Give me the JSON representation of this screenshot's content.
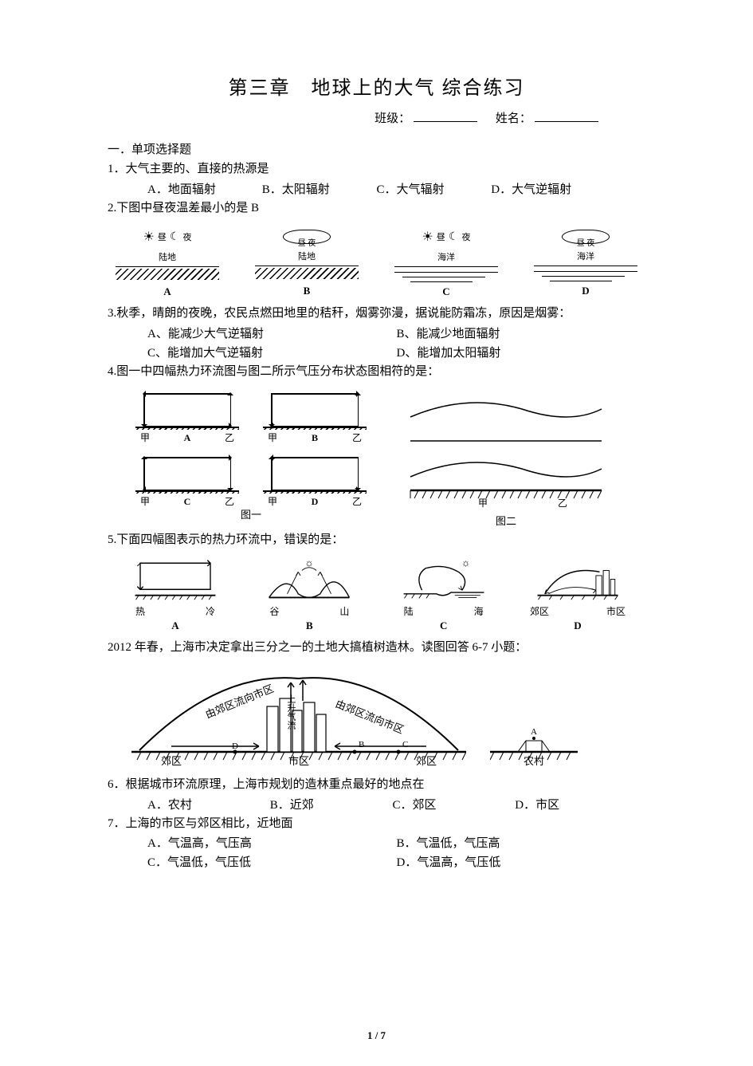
{
  "title": "第三章　地球上的大气 综合练习",
  "fill": {
    "class_label": "班级：",
    "name_label": "姓名："
  },
  "section1": "一．单项选择题",
  "q1": {
    "num": "1．",
    "text": "大气主要的、直接的热源是",
    "A": "A．地面辐射",
    "B": "B．太阳辐射",
    "C": "C．大气辐射",
    "D": "D．大气逆辐射"
  },
  "q2": {
    "num": "2.",
    "text": "下图中昼夜温差最小的是 B",
    "diagrams": [
      {
        "sky": "sun-moon",
        "day": "昼",
        "night": "夜",
        "surface": "陆地",
        "surface_type": "land",
        "letter": "A"
      },
      {
        "sky": "cloud",
        "day": "昼",
        "night": "夜",
        "surface": "陆地",
        "surface_type": "land",
        "letter": "B"
      },
      {
        "sky": "sun-moon",
        "day": "昼",
        "night": "夜",
        "surface": "海洋",
        "surface_type": "sea",
        "letter": "C"
      },
      {
        "sky": "cloud",
        "day": "昼",
        "night": "夜",
        "surface": "海洋",
        "surface_type": "sea",
        "letter": "D"
      }
    ]
  },
  "q3": {
    "num": "3.",
    "text": "秋季，晴朗的夜晚，农民点燃田地里的秸秆，烟雾弥漫，据说能防霜冻，原因是烟雾：",
    "A": "A、能减少大气逆辐射",
    "B": "B、能减少地面辐射",
    "C": "C、能增加大气逆辐射",
    "D": "D、能增加太阳辐射"
  },
  "q4": {
    "num": "4.",
    "text": "图一中四幅热力环流图与图二所示气压分布状态图相符的是：",
    "left_labels": {
      "a": "甲",
      "b": "乙",
      "A": "A",
      "B": "B",
      "C": "C",
      "D": "D",
      "fig1": "图一"
    },
    "right_labels": {
      "a": "甲",
      "b": "乙",
      "fig2": "图二"
    },
    "cells": [
      {
        "letter": "A",
        "top_dir": "left",
        "bot_dir": "right",
        "left_dir": "down",
        "right_dir": "up"
      },
      {
        "letter": "B",
        "top_dir": "right",
        "bot_dir": "left",
        "left_dir": "down",
        "right_dir": "up"
      },
      {
        "letter": "C",
        "top_dir": "right",
        "bot_dir": "left",
        "left_dir": "up",
        "right_dir": "down"
      },
      {
        "letter": "D",
        "top_dir": "left",
        "bot_dir": "right",
        "left_dir": "up",
        "right_dir": "down"
      }
    ]
  },
  "q5": {
    "num": "5.",
    "text": "下面四幅图表示的热力环流中，错误的是：",
    "labels": {
      "hot": "热",
      "cold": "冷",
      "valley": "谷",
      "mtn": "山",
      "land": "陆",
      "sea": "海",
      "suburb": "郊区",
      "city": "市区"
    },
    "letters": [
      "A",
      "B",
      "C",
      "D"
    ]
  },
  "intro67": "2012 年春，上海市决定拿出三分之一的土地大搞植树造林。读图回答 6-7 小题：",
  "citydiag": {
    "suburb": "郊区",
    "city": "市区",
    "village": "农村",
    "flow": "由郊区流向市区",
    "up": "上升气流",
    "A": "A",
    "B": "B",
    "C": "C",
    "D": "D"
  },
  "q6": {
    "num": "6．",
    "text": "根据城市环流原理，上海市规划的造林重点最好的地点在",
    "A": "A．农村",
    "B": "B．近郊",
    "C": "C．郊区",
    "D": "D．市区"
  },
  "q7": {
    "num": "7．",
    "text": "上海的市区与郊区相比，近地面",
    "A": "A．气温高，气压高",
    "B": "B．气温低，气压高",
    "C": "C．气温低，气压低",
    "D": "D．气温高，气压低"
  },
  "page": "1 / 7",
  "style": {
    "page_bg": "#ffffff",
    "text_color": "#000000",
    "title_fontsize": 24,
    "body_fontsize": 15,
    "small_fontsize": 12,
    "stroke": "#000000",
    "stroke_w": 1.5
  }
}
